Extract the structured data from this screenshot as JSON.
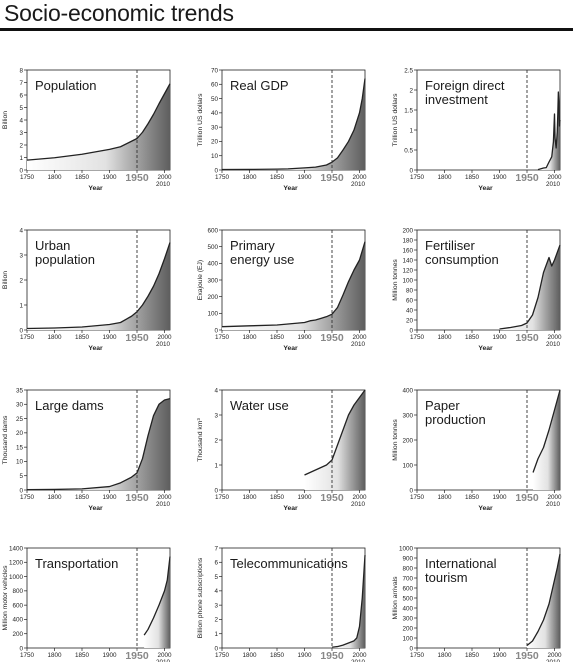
{
  "page_title": "Socio-economic trends",
  "chart_data": [
    {
      "type": "area",
      "title_lines": [
        "Population"
      ],
      "ylabel": "Billion",
      "xlabel": "Year",
      "xlim": [
        1750,
        2010
      ],
      "ylim": [
        0,
        8
      ],
      "yticks": [
        0,
        1,
        2,
        3,
        4,
        5,
        6,
        7,
        8
      ],
      "xticks": [
        1750,
        1800,
        1850,
        1900,
        1950,
        2000
      ],
      "xtick_extra": "2010",
      "marker": {
        "x": 1950,
        "label": "1950"
      },
      "x": [
        1750,
        1800,
        1850,
        1900,
        1920,
        1940,
        1950,
        1960,
        1970,
        1980,
        1990,
        2000,
        2010
      ],
      "y": [
        0.79,
        0.98,
        1.26,
        1.65,
        1.86,
        2.3,
        2.52,
        3.02,
        3.7,
        4.45,
        5.3,
        6.1,
        6.9
      ]
    },
    {
      "type": "area",
      "title_lines": [
        "Real GDP"
      ],
      "ylabel": "Trillion US dollars",
      "xlabel": "Year",
      "xlim": [
        1750,
        2010
      ],
      "ylim": [
        0,
        70
      ],
      "yticks": [
        0,
        10,
        20,
        30,
        40,
        50,
        60,
        70
      ],
      "xticks": [
        1750,
        1800,
        1850,
        1900,
        1950,
        2000
      ],
      "xtick_extra": "2010",
      "marker": {
        "x": 1950,
        "label": "1950"
      },
      "x": [
        1750,
        1800,
        1850,
        1870,
        1900,
        1920,
        1940,
        1950,
        1960,
        1970,
        1980,
        1990,
        2000,
        2005,
        2010
      ],
      "y": [
        0.3,
        0.4,
        0.6,
        0.8,
        1.5,
        2.0,
        3.5,
        5.5,
        8.5,
        14,
        20,
        28,
        40,
        50,
        64
      ]
    },
    {
      "type": "area",
      "title_lines": [
        "Foreign direct",
        "investment"
      ],
      "ylabel": "Trillion US dollars",
      "xlabel": "Year",
      "xlim": [
        1750,
        2010
      ],
      "ylim": [
        0,
        2.5
      ],
      "yticks": [
        0,
        0.5,
        1,
        1.5,
        2,
        2.5
      ],
      "ytick_labels": [
        "0",
        "0.5",
        "1",
        "1.5",
        "2",
        "2.5"
      ],
      "xticks": [
        1750,
        1800,
        1850,
        1900,
        1950,
        2000
      ],
      "xtick_extra": "2010",
      "marker": {
        "x": 1950,
        "label": "1950"
      },
      "x": [
        1970,
        1980,
        1985,
        1990,
        1995,
        1998,
        2000,
        2001,
        2003,
        2005,
        2006,
        2007,
        2008,
        2009,
        2010
      ],
      "y": [
        0.01,
        0.05,
        0.06,
        0.2,
        0.33,
        0.7,
        1.4,
        0.8,
        0.55,
        0.95,
        1.4,
        1.95,
        1.7,
        1.1,
        1.25
      ]
    },
    {
      "type": "area",
      "title_lines": [
        "Urban",
        "population"
      ],
      "ylabel": "Billion",
      "xlabel": "Year",
      "xlim": [
        1750,
        2010
      ],
      "ylim": [
        0,
        4
      ],
      "yticks": [
        0,
        1,
        2,
        3,
        4
      ],
      "xticks": [
        1750,
        1800,
        1850,
        1900,
        1950,
        2000
      ],
      "xtick_extra": "2010",
      "marker": {
        "x": 1950,
        "label": "1950"
      },
      "x": [
        1750,
        1800,
        1850,
        1900,
        1920,
        1940,
        1950,
        1960,
        1970,
        1980,
        1990,
        2000,
        2010
      ],
      "y": [
        0.06,
        0.08,
        0.12,
        0.22,
        0.3,
        0.55,
        0.73,
        1.0,
        1.35,
        1.75,
        2.25,
        2.85,
        3.5
      ]
    },
    {
      "type": "area",
      "title_lines": [
        "Primary",
        "energy use"
      ],
      "ylabel": "Exajoule (EJ)",
      "xlabel": "Year",
      "xlim": [
        1750,
        2010
      ],
      "ylim": [
        0,
        600
      ],
      "yticks": [
        0,
        100,
        200,
        300,
        400,
        500,
        600
      ],
      "xticks": [
        1750,
        1800,
        1850,
        1900,
        1950,
        2000
      ],
      "xtick_extra": "2010",
      "marker": {
        "x": 1950,
        "label": "1950"
      },
      "x": [
        1750,
        1800,
        1850,
        1900,
        1910,
        1920,
        1930,
        1940,
        1950,
        1960,
        1970,
        1980,
        1990,
        2000,
        2010
      ],
      "y": [
        20,
        25,
        30,
        45,
        55,
        60,
        70,
        80,
        95,
        135,
        210,
        290,
        360,
        420,
        530
      ]
    },
    {
      "type": "area",
      "title_lines": [
        "Fertiliser",
        "consumption"
      ],
      "ylabel": "Million tonnes",
      "xlabel": "Year",
      "xlim": [
        1750,
        2010
      ],
      "ylim": [
        0,
        200
      ],
      "yticks": [
        0,
        20,
        40,
        60,
        80,
        100,
        120,
        140,
        160,
        180,
        200
      ],
      "xticks": [
        1750,
        1800,
        1850,
        1900,
        1950,
        2000
      ],
      "xtick_extra": "2010",
      "marker": {
        "x": 1950,
        "label": "1950"
      },
      "x": [
        1900,
        1920,
        1940,
        1950,
        1960,
        1970,
        1980,
        1985,
        1990,
        1995,
        2000,
        2005,
        2010
      ],
      "y": [
        2,
        5,
        9,
        14,
        30,
        65,
        115,
        130,
        145,
        128,
        140,
        155,
        170
      ]
    },
    {
      "type": "area",
      "title_lines": [
        "Large dams"
      ],
      "ylabel": "Thousand dams",
      "xlabel": "Year",
      "xlim": [
        1750,
        2010
      ],
      "ylim": [
        0,
        35
      ],
      "yticks": [
        0,
        5,
        10,
        15,
        20,
        25,
        30,
        35
      ],
      "xticks": [
        1750,
        1800,
        1850,
        1900,
        1950,
        2000
      ],
      "xtick_extra": "2010",
      "marker": {
        "x": 1950,
        "label": "1950"
      },
      "x": [
        1750,
        1800,
        1850,
        1900,
        1920,
        1940,
        1950,
        1960,
        1970,
        1980,
        1990,
        2000,
        2010
      ],
      "y": [
        0.1,
        0.2,
        0.4,
        1.2,
        2.5,
        4.5,
        6,
        11,
        19,
        26,
        30,
        31.5,
        32
      ]
    },
    {
      "type": "area",
      "title_lines": [
        "Water use"
      ],
      "ylabel": "Thousand km³",
      "xlabel": "Year",
      "xlim": [
        1750,
        2010
      ],
      "ylim": [
        0,
        4
      ],
      "yticks": [
        0,
        1,
        2,
        3,
        4
      ],
      "xticks": [
        1750,
        1800,
        1850,
        1900,
        1950,
        2000
      ],
      "xtick_extra": "2010",
      "marker": {
        "x": 1950,
        "label": "1950"
      },
      "x": [
        1900,
        1920,
        1940,
        1950,
        1960,
        1970,
        1980,
        1990,
        2000,
        2010
      ],
      "y": [
        0.6,
        0.8,
        1.0,
        1.2,
        1.8,
        2.4,
        3.0,
        3.4,
        3.7,
        4.0
      ]
    },
    {
      "type": "area",
      "title_lines": [
        "Paper",
        "production"
      ],
      "ylabel": "Million tonnes",
      "xlabel": "Year",
      "xlim": [
        1750,
        2010
      ],
      "ylim": [
        0,
        400
      ],
      "yticks": [
        0,
        100,
        200,
        300,
        400
      ],
      "xticks": [
        1750,
        1800,
        1850,
        1900,
        1950,
        2000
      ],
      "xtick_extra": "2010",
      "marker": {
        "x": 1950,
        "label": "1950"
      },
      "x": [
        1961,
        1970,
        1980,
        1990,
        2000,
        2010
      ],
      "y": [
        70,
        125,
        170,
        240,
        320,
        400
      ]
    },
    {
      "type": "area",
      "title_lines": [
        "Transportation"
      ],
      "ylabel": "Million motor vehicles",
      "xlabel": "Year",
      "xlim": [
        1750,
        2010
      ],
      "ylim": [
        0,
        1400
      ],
      "yticks": [
        0,
        200,
        400,
        600,
        800,
        1000,
        1200,
        1400
      ],
      "xticks": [
        1750,
        1800,
        1850,
        1900,
        1950,
        2000
      ],
      "xtick_extra": "2010",
      "marker": {
        "x": 1950,
        "label": "1950"
      },
      "x": [
        1963,
        1970,
        1980,
        1990,
        2000,
        2005,
        2010
      ],
      "y": [
        180,
        260,
        420,
        600,
        800,
        950,
        1280
      ]
    },
    {
      "type": "area",
      "title_lines": [
        "Telecommunications"
      ],
      "ylabel": "Billion phone subscriptions",
      "xlabel": "Year",
      "xlim": [
        1750,
        2010
      ],
      "ylim": [
        0,
        7
      ],
      "yticks": [
        0,
        1,
        2,
        3,
        4,
        5,
        6,
        7
      ],
      "xticks": [
        1750,
        1800,
        1850,
        1900,
        1950,
        2000
      ],
      "xtick_extra": "2010",
      "marker": {
        "x": 1950,
        "label": "1950"
      },
      "x": [
        1950,
        1960,
        1970,
        1980,
        1990,
        1995,
        2000,
        2005,
        2010
      ],
      "y": [
        0.05,
        0.1,
        0.2,
        0.35,
        0.5,
        0.7,
        1.5,
        3.5,
        6.5
      ]
    },
    {
      "type": "area",
      "title_lines": [
        "International",
        "tourism"
      ],
      "ylabel": "Million arrivals",
      "xlabel": "Year",
      "xlim": [
        1750,
        2010
      ],
      "ylim": [
        0,
        1000
      ],
      "yticks": [
        0,
        100,
        200,
        300,
        400,
        500,
        600,
        700,
        800,
        900,
        1000
      ],
      "xticks": [
        1750,
        1800,
        1850,
        1900,
        1950,
        2000
      ],
      "xtick_extra": "2010",
      "marker": {
        "x": 1950,
        "label": "1950"
      },
      "x": [
        1950,
        1960,
        1970,
        1980,
        1990,
        2000,
        2005,
        2010
      ],
      "y": [
        25,
        70,
        165,
        280,
        440,
        680,
        800,
        940
      ]
    }
  ]
}
